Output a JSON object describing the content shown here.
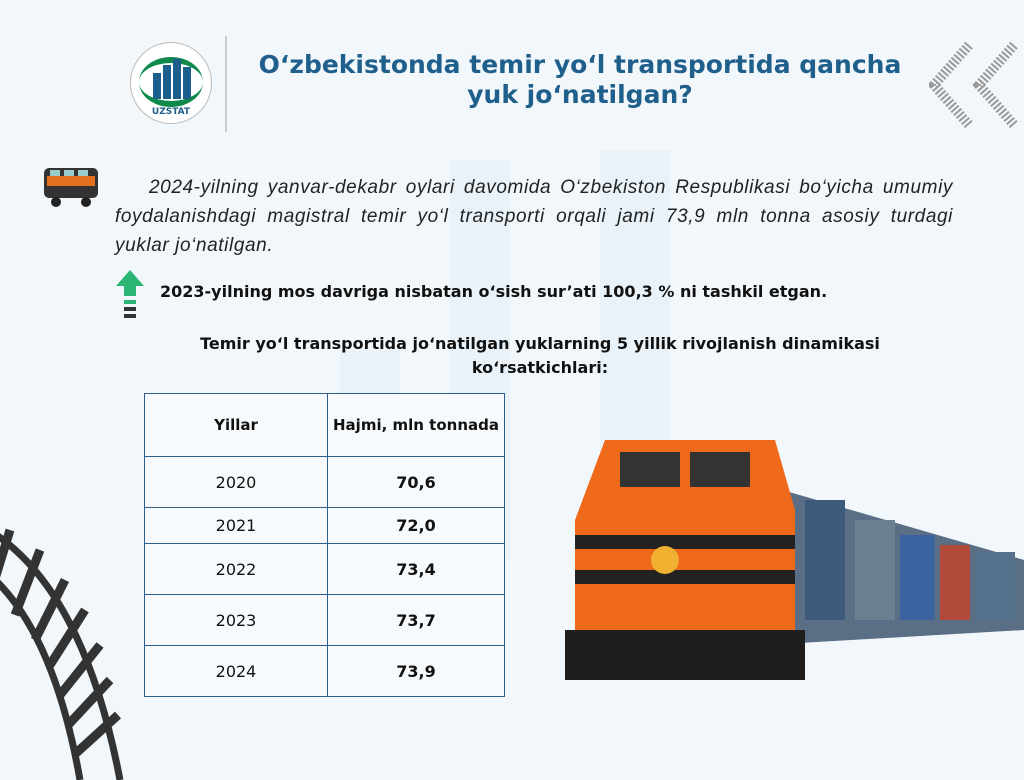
{
  "logo": {
    "text": "UZSTAT"
  },
  "header": {
    "title": "O‘zbekistonda temir yo‘l transportida qancha yuk jo‘natilgan?"
  },
  "intro": "2024-yilning yanvar-dekabr oylari davomida O‘zbekiston Respublikasi bo‘yicha umumiy foydalanishdagi magistral temir yo‘l transporti orqali jami 73,9 mln tonna asosiy turdagi yuklar jo‘natilgan.",
  "growth": "2023-yilning mos davriga nisbatan o‘sish sur’ati  100,3 % ni tashkil etgan.",
  "table_title": "Temir yo‘l transportida jo‘natilgan yuklarning 5 yillik rivojlanish dinamikasi ko‘rsatkichlari:",
  "table": {
    "headers": [
      "Yillar",
      "Hajmi, mln tonnada"
    ],
    "rows": [
      [
        "2020",
        "70,6"
      ],
      [
        "2021",
        "72,0"
      ],
      [
        "2022",
        "73,4"
      ],
      [
        "2023",
        "73,7"
      ],
      [
        "2024",
        "73,9"
      ]
    ]
  },
  "colors": {
    "title": "#1f5f8b",
    "arrow": "#2bb673",
    "table_border": "#2d5d8a"
  }
}
